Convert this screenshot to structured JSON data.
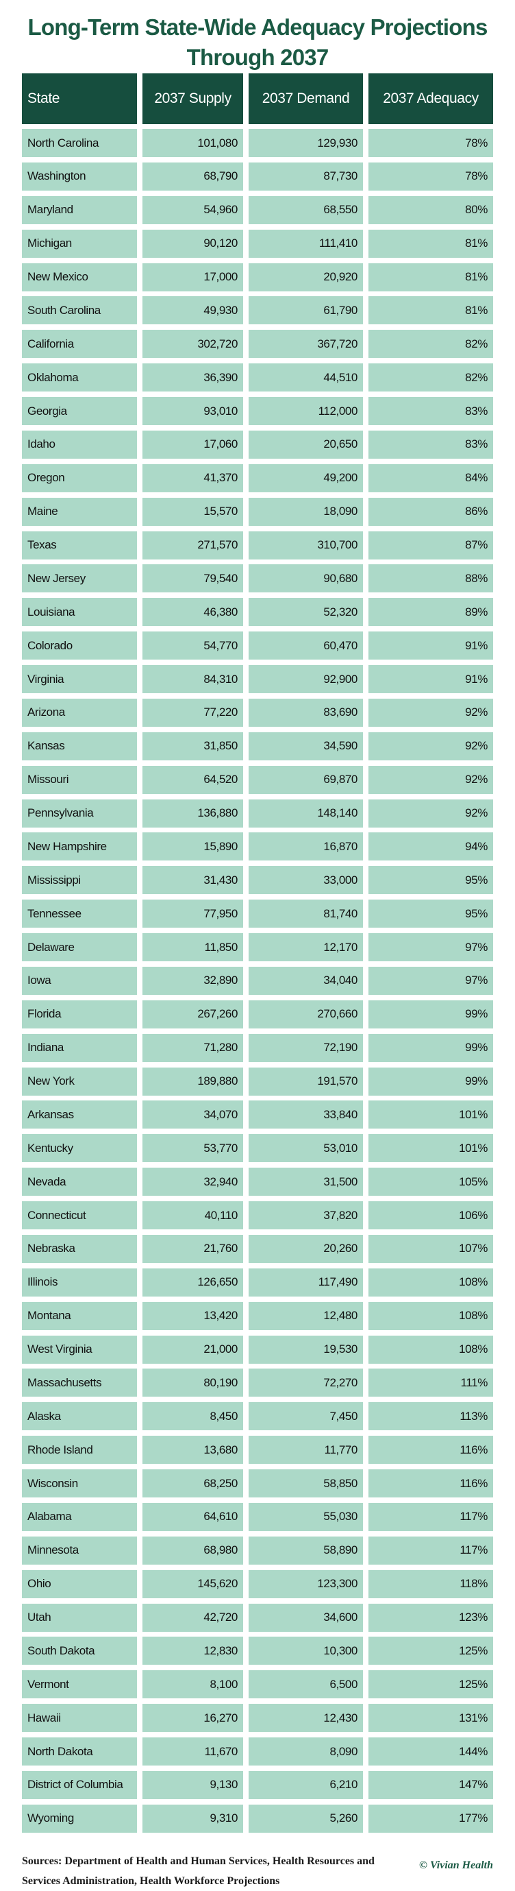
{
  "title": "Long-Term State-Wide Adequacy Projections Through 2037",
  "colors": {
    "header_bg": "#164e3e",
    "row_bg": "#acd9c8",
    "title": "#1b5a44"
  },
  "table": {
    "headers": [
      "State",
      "2037 Supply",
      "2037 Demand",
      "2037 Adequacy"
    ],
    "rows": [
      [
        "North Carolina",
        "101,080",
        "129,930",
        "78%"
      ],
      [
        "Washington",
        "68,790",
        "87,730",
        "78%"
      ],
      [
        "Maryland",
        "54,960",
        "68,550",
        "80%"
      ],
      [
        "Michigan",
        "90,120",
        "111,410",
        "81%"
      ],
      [
        "New Mexico",
        "17,000",
        "20,920",
        "81%"
      ],
      [
        "South Carolina",
        "49,930",
        "61,790",
        "81%"
      ],
      [
        "California",
        "302,720",
        "367,720",
        "82%"
      ],
      [
        "Oklahoma",
        "36,390",
        "44,510",
        "82%"
      ],
      [
        "Georgia",
        "93,010",
        "112,000",
        "83%"
      ],
      [
        "Idaho",
        "17,060",
        "20,650",
        "83%"
      ],
      [
        "Oregon",
        "41,370",
        "49,200",
        "84%"
      ],
      [
        "Maine",
        "15,570",
        "18,090",
        "86%"
      ],
      [
        "Texas",
        "271,570",
        "310,700",
        "87%"
      ],
      [
        "New Jersey",
        "79,540",
        "90,680",
        "88%"
      ],
      [
        "Louisiana",
        "46,380",
        "52,320",
        "89%"
      ],
      [
        "Colorado",
        "54,770",
        "60,470",
        "91%"
      ],
      [
        "Virginia",
        "84,310",
        "92,900",
        "91%"
      ],
      [
        "Arizona",
        "77,220",
        "83,690",
        "92%"
      ],
      [
        "Kansas",
        "31,850",
        "34,590",
        "92%"
      ],
      [
        "Missouri",
        "64,520",
        "69,870",
        "92%"
      ],
      [
        "Pennsylvania",
        "136,880",
        "148,140",
        "92%"
      ],
      [
        "New Hampshire",
        "15,890",
        "16,870",
        "94%"
      ],
      [
        "Mississippi",
        "31,430",
        "33,000",
        "95%"
      ],
      [
        "Tennessee",
        "77,950",
        "81,740",
        "95%"
      ],
      [
        "Delaware",
        "11,850",
        "12,170",
        "97%"
      ],
      [
        "Iowa",
        "32,890",
        "34,040",
        "97%"
      ],
      [
        "Florida",
        "267,260",
        "270,660",
        "99%"
      ],
      [
        "Indiana",
        "71,280",
        "72,190",
        "99%"
      ],
      [
        "New York",
        "189,880",
        "191,570",
        "99%"
      ],
      [
        "Arkansas",
        "34,070",
        "33,840",
        "101%"
      ],
      [
        "Kentucky",
        "53,770",
        "53,010",
        "101%"
      ],
      [
        "Nevada",
        "32,940",
        "31,500",
        "105%"
      ],
      [
        "Connecticut",
        "40,110",
        "37,820",
        "106%"
      ],
      [
        "Nebraska",
        "21,760",
        "20,260",
        "107%"
      ],
      [
        "Illinois",
        "126,650",
        "117,490",
        "108%"
      ],
      [
        "Montana",
        "13,420",
        "12,480",
        "108%"
      ],
      [
        "West Virginia",
        "21,000",
        "19,530",
        "108%"
      ],
      [
        "Massachusetts",
        "80,190",
        "72,270",
        "111%"
      ],
      [
        "Alaska",
        "8,450",
        "7,450",
        "113%"
      ],
      [
        "Rhode Island",
        "13,680",
        "11,770",
        "116%"
      ],
      [
        "Wisconsin",
        "68,250",
        "58,850",
        "116%"
      ],
      [
        "Alabama",
        "64,610",
        "55,030",
        "117%"
      ],
      [
        "Minnesota",
        "68,980",
        "58,890",
        "117%"
      ],
      [
        "Ohio",
        "145,620",
        "123,300",
        "118%"
      ],
      [
        "Utah",
        "42,720",
        "34,600",
        "123%"
      ],
      [
        "South Dakota",
        "12,830",
        "10,300",
        "125%"
      ],
      [
        "Vermont",
        "8,100",
        "6,500",
        "125%"
      ],
      [
        "Hawaii",
        "16,270",
        "12,430",
        "131%"
      ],
      [
        "North Dakota",
        "11,670",
        "8,090",
        "144%"
      ],
      [
        "District of Columbia",
        "9,130",
        "6,210",
        "147%"
      ],
      [
        "Wyoming",
        "9,310",
        "5,260",
        "177%"
      ]
    ]
  },
  "footer": {
    "sources": "Sources: Department of Health and Human Services, Health Resources and Services Administration, Health Workforce Projections",
    "credit": "© Vivian Health"
  }
}
